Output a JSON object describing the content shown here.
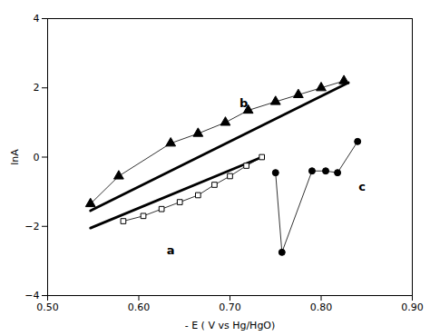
{
  "chart_data": {
    "type": "line",
    "xlabel": "- E ( V vs Hg/HgO)",
    "ylabel": "lnA",
    "xlim": [
      0.5,
      0.9
    ],
    "ylim": [
      -4,
      4
    ],
    "xticks": [
      0.5,
      0.6,
      0.7,
      0.8,
      0.9
    ],
    "yticks": [
      -4,
      -2,
      0,
      2,
      4
    ],
    "grid": false,
    "series": [
      {
        "x": [
          0.583,
          0.605,
          0.625,
          0.645,
          0.665,
          0.683,
          0.7,
          0.718,
          0.735
        ],
        "values": [
          -1.85,
          -1.7,
          -1.5,
          -1.3,
          -1.1,
          -0.8,
          -0.55,
          -0.25,
          0.0
        ],
        "color": "#000000",
        "marker": "square_open",
        "line_style": "thin"
      },
      {
        "x": [
          0.547,
          0.735
        ],
        "values": [
          -2.05,
          0.0
        ],
        "color": "#000000",
        "marker": "none",
        "line_style": "bold"
      },
      {
        "x": [
          0.547,
          0.578,
          0.635,
          0.665,
          0.695,
          0.72,
          0.75,
          0.775,
          0.8,
          0.825
        ],
        "values": [
          -1.35,
          -0.55,
          0.4,
          0.68,
          1.0,
          1.35,
          1.6,
          1.8,
          2.0,
          2.2
        ],
        "color": "#000000",
        "marker": "triangle",
        "line_style": "thin"
      },
      {
        "x": [
          0.547,
          0.83
        ],
        "values": [
          -1.55,
          2.15
        ],
        "color": "#000000",
        "marker": "none",
        "line_style": "bold"
      },
      {
        "x": [
          0.75,
          0.757,
          0.79,
          0.805,
          0.818,
          0.84
        ],
        "values": [
          -0.45,
          -2.75,
          -0.4,
          -0.4,
          -0.45,
          0.45
        ],
        "color": "#000000",
        "marker": "circle",
        "line_style": "thin"
      }
    ],
    "annotations": [
      {
        "text": "a",
        "x": 0.635,
        "y": -2.7
      },
      {
        "text": "b",
        "x": 0.715,
        "y": 1.55
      },
      {
        "text": "c",
        "x": 0.845,
        "y": -0.85
      }
    ]
  }
}
